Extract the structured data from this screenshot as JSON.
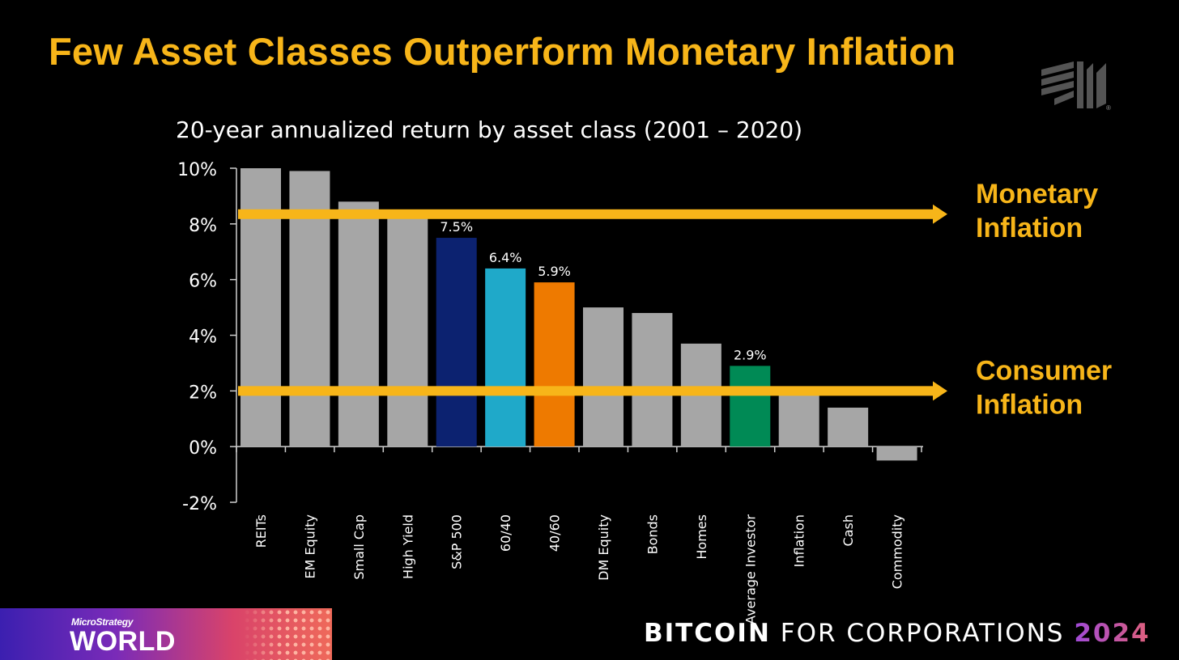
{
  "slide": {
    "title": "Few Asset Classes Outperform Monetary Inflation"
  },
  "footer": {
    "brand_small": "MicroStrategy",
    "brand_big": "WORLD",
    "event_bold": "BITCOIN",
    "event_light": "FOR CORPORATIONS",
    "event_year": "2024"
  },
  "chart_data": {
    "type": "bar",
    "title": "20-year annualized return by asset class (2001 – 2020)",
    "xlabel": "",
    "ylabel": "",
    "ylim": [
      -2,
      10
    ],
    "yticks": [
      "10%",
      "8%",
      "6%",
      "4%",
      "2%",
      "0%",
      "-2%"
    ],
    "ytick_values": [
      10,
      8,
      6,
      4,
      2,
      0,
      -2
    ],
    "categories": [
      "REITs",
      "EM Equity",
      "Small Cap",
      "High Yield",
      "S&P 500",
      "60/40",
      "40/60",
      "DM Equity",
      "Bonds",
      "Homes",
      "Average Investor",
      "Inflation",
      "Cash",
      "Commodity"
    ],
    "values": [
      10.0,
      9.9,
      8.8,
      8.2,
      7.5,
      6.4,
      5.9,
      5.0,
      4.8,
      3.7,
      2.9,
      1.9,
      1.4,
      -0.5
    ],
    "data_labels": [
      "",
      "",
      "",
      "",
      "7.5%",
      "6.4%",
      "5.9%",
      "",
      "",
      "",
      "2.9%",
      "",
      "",
      ""
    ],
    "colors": [
      "#a6a6a6",
      "#a6a6a6",
      "#a6a6a6",
      "#a6a6a6",
      "#0c2270",
      "#1fa9c9",
      "#ee7a00",
      "#a6a6a6",
      "#a6a6a6",
      "#a6a6a6",
      "#008a55",
      "#a6a6a6",
      "#a6a6a6",
      "#a6a6a6"
    ],
    "reference_lines": [
      {
        "label_line1": "Monetary",
        "label_line2": "Inflation",
        "value": 8.35,
        "color": "#f7b519"
      },
      {
        "label_line1": "Consumer",
        "label_line2": "Inflation",
        "value": 2.0,
        "color": "#f7b519"
      }
    ],
    "grid": false
  }
}
